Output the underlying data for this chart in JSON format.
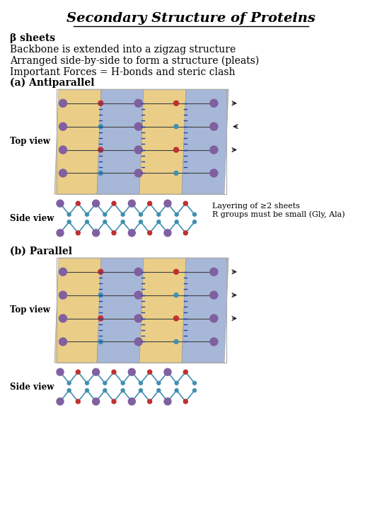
{
  "title": "Secondary Structure of Proteins",
  "title_fontsize": 14,
  "bg_color": "#ffffff",
  "text_color": "#000000",
  "bullet_lines": [
    "β sheets",
    "Backbone is extended into a zigzag structure",
    "Arranged side-by-side to form a structure (pleats)",
    "Important Forces = H-bonds and steric clash"
  ],
  "bullet_bold": [
    true,
    false,
    false,
    false
  ],
  "bullet_fontsize": [
    10,
    10,
    10,
    10
  ],
  "section_a_label": "(a) Antiparallel",
  "section_b_label": "(b) Parallel",
  "top_view_label": "Top view",
  "side_view_label": "Side view",
  "layering_text": "Layering of ≥2 sheets\nR groups must be small (Gly, Ala)",
  "layering_fontsize": 8,
  "font_family": "DejaVu Serif",
  "gold_color": "#E8C97A",
  "blue_color": "#9EB0D4",
  "purple_atom": "#8060A0",
  "red_atom": "#C03030",
  "cyan_atom": "#4090B0",
  "bond_color": "#404040",
  "arrow_color": "#222222"
}
